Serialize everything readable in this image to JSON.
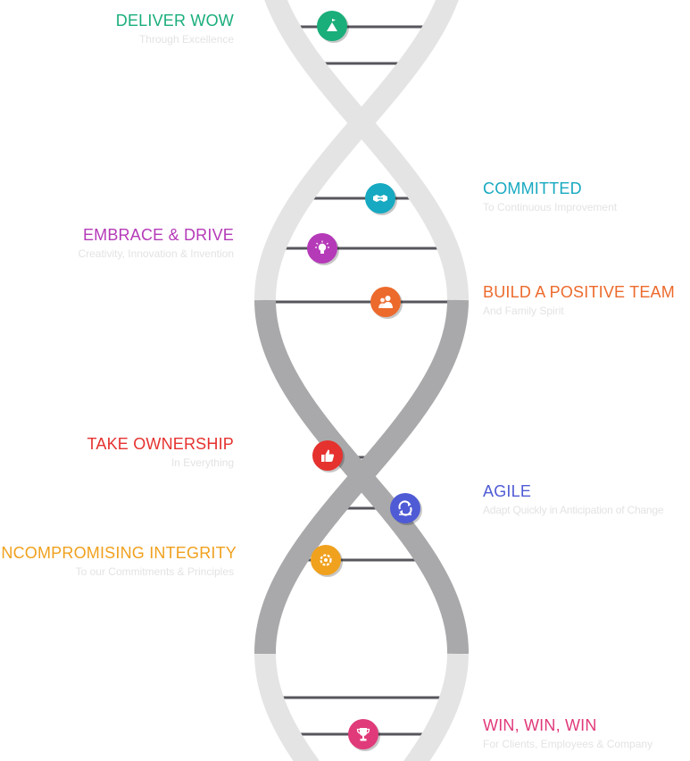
{
  "values": [
    {
      "id": "deliver-wow",
      "title": "DELIVER WOW",
      "subtitle": "Through Excellence",
      "color": "#1aae7a",
      "icon": "flag-mountain-icon"
    },
    {
      "id": "committed",
      "title": "COMMITTED",
      "subtitle": "To Continuous Improvement",
      "color": "#17a9c1",
      "icon": "handshake-icon"
    },
    {
      "id": "embrace-drive",
      "title": "EMBRACE & DRIVE",
      "subtitle": "Creativity, Innovation & Invention",
      "color": "#b53ab8",
      "icon": "lightbulb-icon"
    },
    {
      "id": "positive-team",
      "title": "BUILD A POSITIVE TEAM",
      "subtitle": "And Family Spirit",
      "color": "#ec6a2c",
      "icon": "people-icon"
    },
    {
      "id": "take-ownership",
      "title": "TAKE OWNERSHIP",
      "subtitle": "In Everything",
      "color": "#e5322f",
      "icon": "thumbs-up-icon"
    },
    {
      "id": "agile",
      "title": "AGILE",
      "subtitle": "Adapt Quickly in Anticipation of Change",
      "color": "#4f5bd5",
      "icon": "cycle-icon"
    },
    {
      "id": "integrity",
      "title": "UNCOMPROMISING INTEGRITY",
      "subtitle": "To our Commitments & Principles",
      "color": "#f0a11e",
      "icon": "gear-ring-icon"
    },
    {
      "id": "win-win",
      "title": "WIN, WIN, WIN",
      "subtitle": "For Clients, Employees & Company",
      "color": "#e03a7a",
      "icon": "trophy-icon"
    }
  ],
  "colors": {
    "strand_light": "#e4e4e4",
    "strand_dark": "#a9a9ab",
    "rung": "#56565c"
  }
}
